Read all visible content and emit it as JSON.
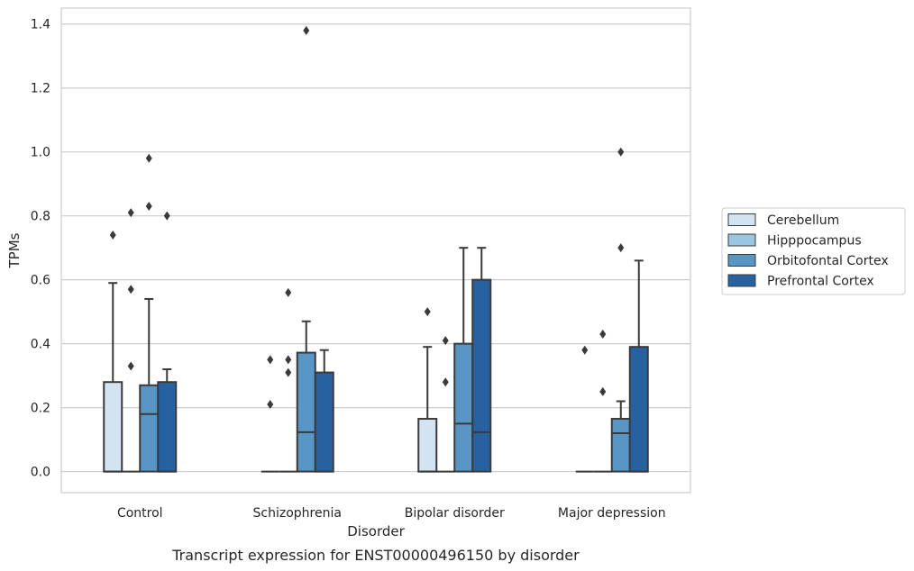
{
  "caption": "Transcript expression for ENST00000496150 by disorder",
  "chart_data": {
    "type": "box",
    "xlabel": "Disorder",
    "ylabel": "TPMs",
    "ylim": [
      -0.066,
      1.45
    ],
    "yticks": [
      "0.0",
      "0.2",
      "0.4",
      "0.6",
      "0.8",
      "1.0",
      "1.2",
      "1.4"
    ],
    "grid": "horizontal",
    "legend_position": "right",
    "categories": [
      "Control",
      "Schizophrenia",
      "Bipolar disorder",
      "Major depression"
    ],
    "series": [
      {
        "name": "Cerebellum",
        "color": "#d4e3f1",
        "boxes": [
          {
            "q1": 0,
            "median": 0,
            "q3": 0.28,
            "whisker_low": 0,
            "whisker_high": 0.59,
            "outliers": [
              0.74
            ]
          },
          {
            "q1": 0,
            "median": 0,
            "q3": 0,
            "whisker_low": 0,
            "whisker_high": 0,
            "outliers": [
              0.21,
              0.35
            ]
          },
          {
            "q1": 0,
            "median": 0,
            "q3": 0.165,
            "whisker_low": 0,
            "whisker_high": 0.39,
            "outliers": [
              0.5
            ]
          },
          {
            "q1": 0,
            "median": 0,
            "q3": 0,
            "whisker_low": 0,
            "whisker_high": 0,
            "outliers": [
              0.38
            ]
          }
        ]
      },
      {
        "name": "Hipppocampus",
        "color": "#9cc5e0",
        "boxes": [
          {
            "q1": 0,
            "median": 0,
            "q3": 0,
            "whisker_low": 0,
            "whisker_high": 0,
            "outliers": [
              0.33,
              0.57,
              0.81
            ]
          },
          {
            "q1": 0,
            "median": 0,
            "q3": 0,
            "whisker_low": 0,
            "whisker_high": 0,
            "outliers": [
              0.31,
              0.35,
              0.56
            ]
          },
          {
            "q1": 0,
            "median": 0,
            "q3": 0,
            "whisker_low": 0,
            "whisker_high": 0,
            "outliers": [
              0.28,
              0.41
            ]
          },
          {
            "q1": 0,
            "median": 0,
            "q3": 0,
            "whisker_low": 0,
            "whisker_high": 0,
            "outliers": [
              0.25,
              0.43
            ]
          }
        ]
      },
      {
        "name": "Orbitofontal Cortex",
        "color": "#5796c5",
        "boxes": [
          {
            "q1": 0,
            "median": 0.18,
            "q3": 0.27,
            "whisker_low": 0,
            "whisker_high": 0.54,
            "outliers": [
              0.83,
              0.98
            ]
          },
          {
            "q1": 0,
            "median": 0.123,
            "q3": 0.372,
            "whisker_low": 0,
            "whisker_high": 0.47,
            "outliers": [
              1.38
            ]
          },
          {
            "q1": 0,
            "median": 0.15,
            "q3": 0.4,
            "whisker_low": 0,
            "whisker_high": 0.7,
            "outliers": []
          },
          {
            "q1": 0,
            "median": 0.12,
            "q3": 0.165,
            "whisker_low": 0,
            "whisker_high": 0.22,
            "outliers": [
              0.7,
              1.0
            ]
          }
        ]
      },
      {
        "name": "Prefrontal Cortex",
        "color": "#2861a0",
        "boxes": [
          {
            "q1": 0,
            "median": 0,
            "q3": 0.28,
            "whisker_low": 0,
            "whisker_high": 0.32,
            "outliers": [
              0.8
            ]
          },
          {
            "q1": 0,
            "median": 0,
            "q3": 0.31,
            "whisker_low": 0,
            "whisker_high": 0.38,
            "outliers": []
          },
          {
            "q1": 0,
            "median": 0.123,
            "q3": 0.6,
            "whisker_low": 0,
            "whisker_high": 0.7,
            "outliers": []
          },
          {
            "q1": 0,
            "median": 0,
            "q3": 0.39,
            "whisker_low": 0,
            "whisker_high": 0.66,
            "outliers": []
          }
        ]
      }
    ]
  }
}
